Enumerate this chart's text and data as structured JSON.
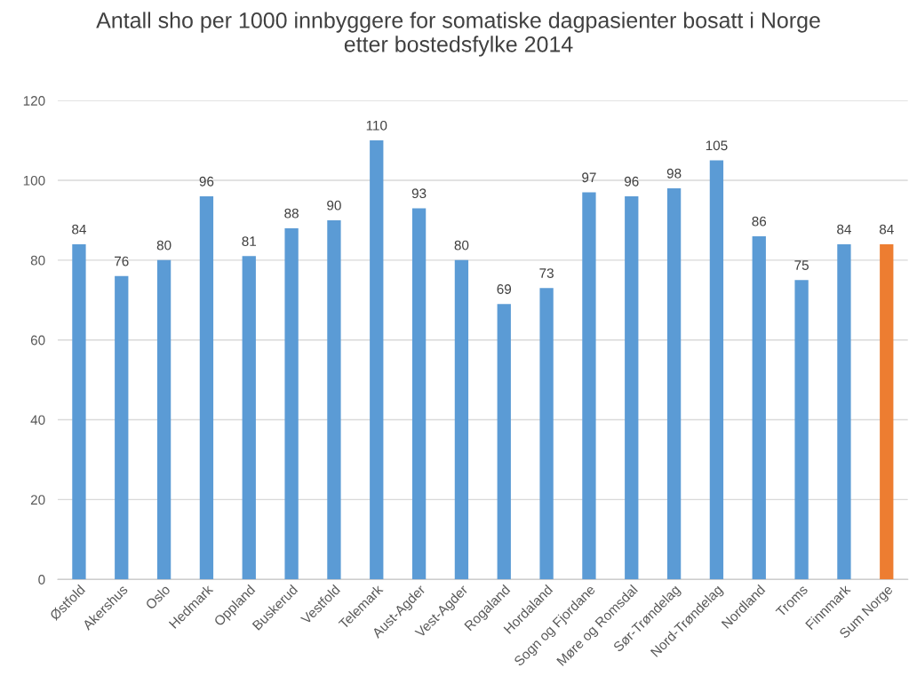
{
  "chart_data": {
    "type": "bar",
    "title": "Antall sho per 1000 innbyggere for somatiske dagpasienter bosatt i Norge\netter bostedsfylke 2014",
    "categories": [
      "Østfold",
      "Akershus",
      "Oslo",
      "Hedmark",
      "Oppland",
      "Buskerud",
      "Vestfold",
      "Telemark",
      "Aust-Agder",
      "Vest-Agder",
      "Rogaland",
      "Hordaland",
      "Sogn og Fjordane",
      "Møre og Romsdal",
      "Sør-Trøndelag",
      "Nord-Trøndelag",
      "Nordland",
      "Troms",
      "Finnmark",
      "Sum Norge"
    ],
    "values": [
      84,
      76,
      80,
      96,
      81,
      88,
      90,
      110,
      93,
      80,
      69,
      73,
      97,
      96,
      98,
      105,
      86,
      75,
      84,
      84
    ],
    "colors": [
      "#5b9bd5",
      "#5b9bd5",
      "#5b9bd5",
      "#5b9bd5",
      "#5b9bd5",
      "#5b9bd5",
      "#5b9bd5",
      "#5b9bd5",
      "#5b9bd5",
      "#5b9bd5",
      "#5b9bd5",
      "#5b9bd5",
      "#5b9bd5",
      "#5b9bd5",
      "#5b9bd5",
      "#5b9bd5",
      "#5b9bd5",
      "#5b9bd5",
      "#5b9bd5",
      "#ed7d31"
    ],
    "ylim": [
      0,
      120
    ],
    "yticks": [
      0,
      20,
      40,
      60,
      80,
      100,
      120
    ],
    "grid": "y",
    "data_labels": true
  }
}
